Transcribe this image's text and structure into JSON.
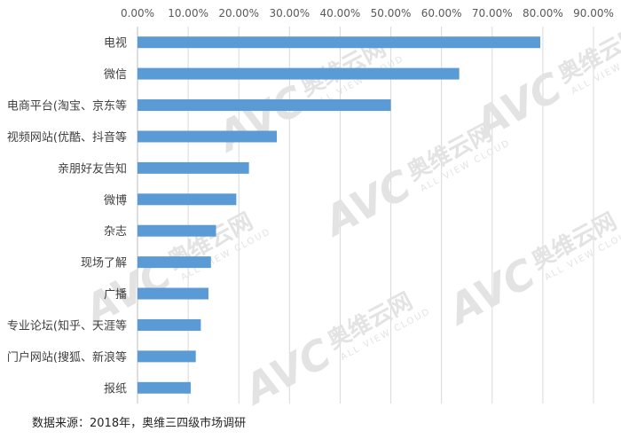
{
  "chart_data": {
    "type": "bar",
    "orientation": "horizontal",
    "categories": [
      "电视",
      "微信",
      "电商平台(淘宝、京东等",
      "视频网站(优酷、抖音等",
      "亲朋好友告知",
      "微博",
      "杂志",
      "现场了解",
      "广播",
      "专业论坛(知乎、天涯等",
      "门户网站(搜狐、新浪等",
      "报纸"
    ],
    "values": [
      79.5,
      63.5,
      50.0,
      27.5,
      22.0,
      19.5,
      15.5,
      14.5,
      14.0,
      12.5,
      11.5,
      10.5
    ],
    "xlim": [
      0,
      90
    ],
    "xticks": [
      "0.00%",
      "10.00%",
      "20.00%",
      "30.00%",
      "40.00%",
      "50.00%",
      "60.00%",
      "70.00%",
      "80.00%",
      "90.00%"
    ],
    "x_axis_position": "top",
    "grid": true,
    "bar_color": "#5b9bd5",
    "title": "",
    "xlabel": "",
    "ylabel": ""
  },
  "source_note": "数据来源：2018年，奥维三四级市场调研",
  "watermark": {
    "logo": "AVC",
    "cn": "奥维云网",
    "en": "ALL VIEW CLOUD",
    "color": "#e3e3e3"
  }
}
